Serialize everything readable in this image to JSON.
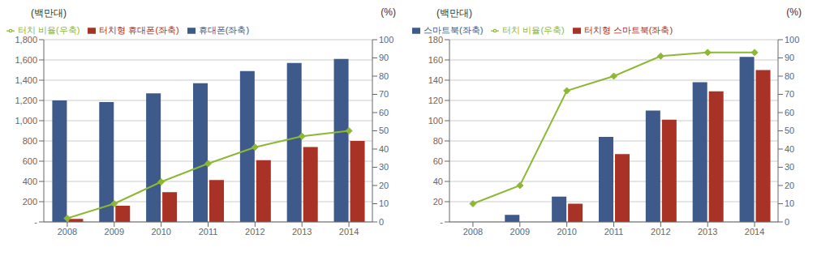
{
  "chart_data": [
    {
      "type": "bar",
      "ylabel": "(백만대)",
      "y2label": "(%)",
      "categories": [
        "2008",
        "2009",
        "2010",
        "2011",
        "2012",
        "2013",
        "2014"
      ],
      "series": [
        {
          "name": "휴대폰(좌축)",
          "type": "bar",
          "color": "#3d5a8a",
          "values": [
            1200,
            1185,
            1270,
            1370,
            1490,
            1570,
            1610
          ]
        },
        {
          "name": "터치형 휴대폰(좌축)",
          "type": "bar",
          "color": "#a93226",
          "values": [
            30,
            160,
            295,
            415,
            610,
            740,
            800
          ]
        },
        {
          "name": "터치 비율(우축)",
          "type": "line",
          "axis": "y2",
          "color": "#8db834",
          "marker": "diamond",
          "values": [
            2,
            10,
            22,
            32,
            41,
            47,
            50
          ]
        }
      ],
      "ylim": [
        0,
        1800
      ],
      "yticks": [
        {
          "value": 0,
          "label": "-"
        },
        200,
        400,
        600,
        800,
        {
          "value": 1000,
          "label": "1,000"
        },
        {
          "value": 1200,
          "label": "1,200"
        },
        {
          "value": 1400,
          "label": "1,400"
        },
        {
          "value": 1600,
          "label": "1,600"
        },
        {
          "value": 1800,
          "label": "1,800"
        }
      ],
      "y2lim": [
        0,
        100
      ],
      "y2ticks": [
        0,
        10,
        20,
        30,
        40,
        50,
        60,
        70,
        80,
        90,
        100
      ],
      "grid": true,
      "legend": "upper left"
    },
    {
      "type": "bar",
      "ylabel": "(백만대)",
      "y2label": "(%)",
      "categories": [
        "2008",
        "2009",
        "2010",
        "2011",
        "2012",
        "2013",
        "2014"
      ],
      "series": [
        {
          "name": "스마트북(좌축)",
          "type": "bar",
          "color": "#3d5a8a",
          "values": [
            0,
            7,
            25,
            84,
            110,
            138,
            163
          ]
        },
        {
          "name": "터치형 스마트북(좌축)",
          "type": "bar",
          "color": "#a93226",
          "values": [
            0,
            0,
            18,
            67,
            101,
            129,
            150
          ]
        },
        {
          "name": "터치 비율(우축)",
          "type": "line",
          "axis": "y2",
          "color": "#8db834",
          "marker": "diamond",
          "values": [
            10,
            20,
            72,
            80,
            91,
            93,
            93
          ]
        }
      ],
      "ylim": [
        0,
        180
      ],
      "yticks": [
        {
          "value": 0,
          "label": "-"
        },
        20,
        40,
        60,
        80,
        100,
        120,
        140,
        160,
        180
      ],
      "y2lim": [
        0,
        100
      ],
      "y2ticks": [
        0,
        10,
        20,
        30,
        40,
        50,
        60,
        70,
        80,
        90,
        100
      ],
      "grid": true,
      "legend": "upper left"
    }
  ]
}
